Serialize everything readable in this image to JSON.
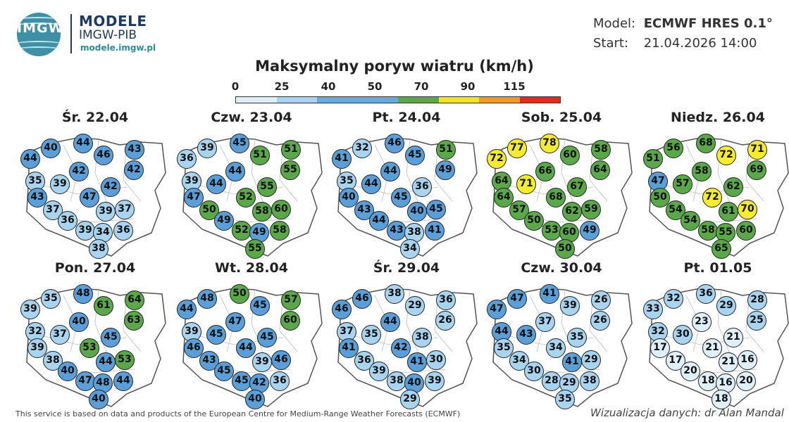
{
  "header": {
    "logo_badge": "IMGW",
    "logo_name": "MODELE",
    "logo_sub": "IMGW-PIB",
    "logo_url": "modele.imgw.pl",
    "model_label": "Model:",
    "model_value": "ECMWF HRES 0.1°",
    "start_label": "Start:",
    "start_value": "21.04.2026 14:00"
  },
  "title": "Maksymalny poryw wiatru (km/h)",
  "scale": {
    "ticks": [
      "0",
      "25",
      "40",
      "50",
      "70",
      "90",
      "115"
    ],
    "colors": [
      "#ddeef8",
      "#a8d2ef",
      "#6aa9dd",
      "#6aa9dd",
      "#5aa84a",
      "#f1e426",
      "#f09a2c",
      "#e32b1f"
    ]
  },
  "palette": {
    "light": "#dff0fa",
    "sky": "#a9d4f0",
    "blue": "#5b9fd9",
    "green": "#5aa84a",
    "yellow": "#f5ec2f",
    "border": "#1c1c1c"
  },
  "panels": [
    {
      "title": "Śr. 22.04",
      "values": [
        40,
        44,
        46,
        43,
        44,
        42,
        42,
        35,
        39,
        47,
        42,
        43,
        37,
        39,
        37,
        36,
        39,
        34,
        36,
        38
      ]
    },
    {
      "title": "Czw. 23.04",
      "values": [
        39,
        45,
        51,
        51,
        36,
        44,
        55,
        39,
        44,
        52,
        55,
        47,
        50,
        58,
        60,
        49,
        52,
        49,
        58,
        55
      ]
    },
    {
      "title": "Pt. 24.04",
      "values": [
        32,
        46,
        45,
        51,
        41,
        44,
        49,
        35,
        44,
        45,
        36,
        40,
        43,
        40,
        45,
        44,
        43,
        38,
        41,
        34
      ]
    },
    {
      "title": "Sob. 25.04",
      "values": [
        77,
        78,
        60,
        58,
        72,
        66,
        64,
        64,
        71,
        68,
        67,
        64,
        57,
        62,
        59,
        50,
        53,
        60,
        49,
        50
      ]
    },
    {
      "title": "Niedz. 26.04",
      "values": [
        56,
        68,
        72,
        71,
        51,
        58,
        69,
        47,
        57,
        72,
        62,
        50,
        54,
        61,
        70,
        54,
        58,
        55,
        60,
        65
      ]
    },
    {
      "title": "Pon. 27.04",
      "values": [
        35,
        48,
        61,
        64,
        39,
        40,
        63,
        32,
        37,
        53,
        45,
        39,
        38,
        44,
        53,
        40,
        47,
        48,
        44,
        40
      ]
    },
    {
      "title": "Wt. 28.04",
      "values": [
        48,
        50,
        45,
        57,
        44,
        47,
        60,
        39,
        45,
        44,
        45,
        46,
        43,
        39,
        46,
        45,
        45,
        42,
        36,
        40
      ]
    },
    {
      "title": "Śr. 29.04",
      "values": [
        46,
        38,
        29,
        36,
        46,
        44,
        26,
        37,
        35,
        42,
        38,
        41,
        36,
        41,
        30,
        39,
        38,
        40,
        39,
        29
      ]
    },
    {
      "title": "Czw. 30.04",
      "values": [
        47,
        41,
        39,
        26,
        47,
        37,
        26,
        44,
        43,
        34,
        35,
        35,
        34,
        41,
        29,
        30,
        28,
        29,
        38,
        35
      ]
    },
    {
      "title": "Pt. 01.05",
      "values": [
        32,
        36,
        29,
        28,
        33,
        23,
        25,
        32,
        30,
        21,
        21,
        17,
        17,
        21,
        16,
        20,
        18,
        16,
        20,
        18
      ]
    }
  ],
  "footer": {
    "left": "This service is based on data and products of the European Centre for Medium-Range Weather Forecasts (ECMWF)",
    "right": "Wizualizacja danych: dr Alan Mandal"
  }
}
